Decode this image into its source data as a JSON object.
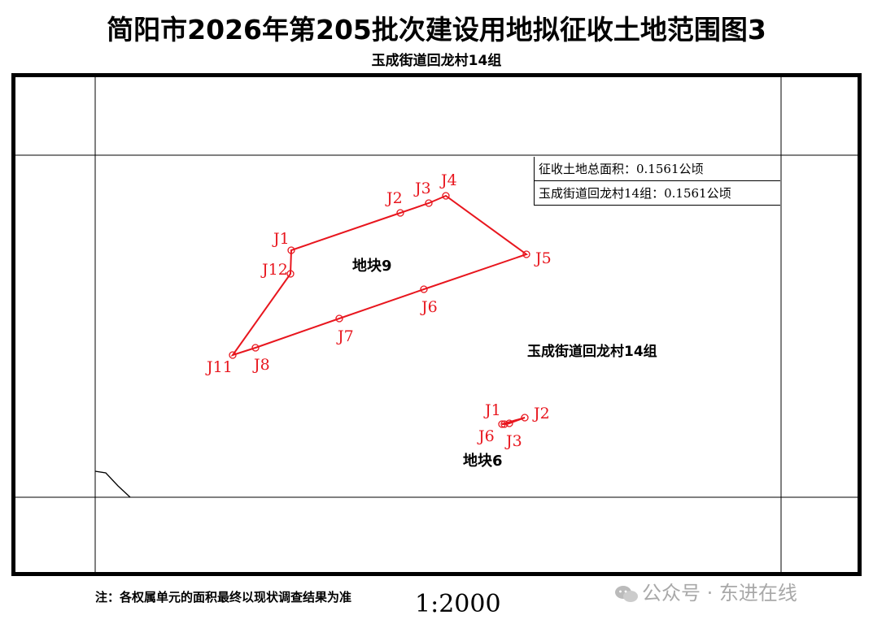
{
  "title": "简阳市2026年第205批次建设用地拟征收土地范围图3",
  "subtitle": "玉成街道回龙村14组",
  "info": {
    "total_area": "征收土地总面积：0.1561公顷",
    "group_area": "玉成街道回龙村14组：0.1561公顷"
  },
  "region_label": "玉成街道回龙村14组",
  "parcels": [
    {
      "name": "地块9",
      "points": [
        {
          "id": "J1"
        },
        {
          "id": "J2"
        },
        {
          "id": "J3"
        },
        {
          "id": "J4"
        },
        {
          "id": "J5"
        },
        {
          "id": "J6"
        },
        {
          "id": "J7"
        },
        {
          "id": "J8"
        },
        {
          "id": "J11"
        },
        {
          "id": "J12"
        }
      ]
    },
    {
      "name": "地块6",
      "points": [
        {
          "id": "J1"
        },
        {
          "id": "J2"
        },
        {
          "id": "J3"
        },
        {
          "id": "J6"
        }
      ]
    }
  ],
  "note": "注：各权属单元的面积最终以现状调查结果为准",
  "scale": "1:2000",
  "watermark": "公众号 · 东进在线",
  "colors": {
    "boundary": "#e8161e",
    "frame": "#000000",
    "watermark": "#9a9a9a"
  }
}
